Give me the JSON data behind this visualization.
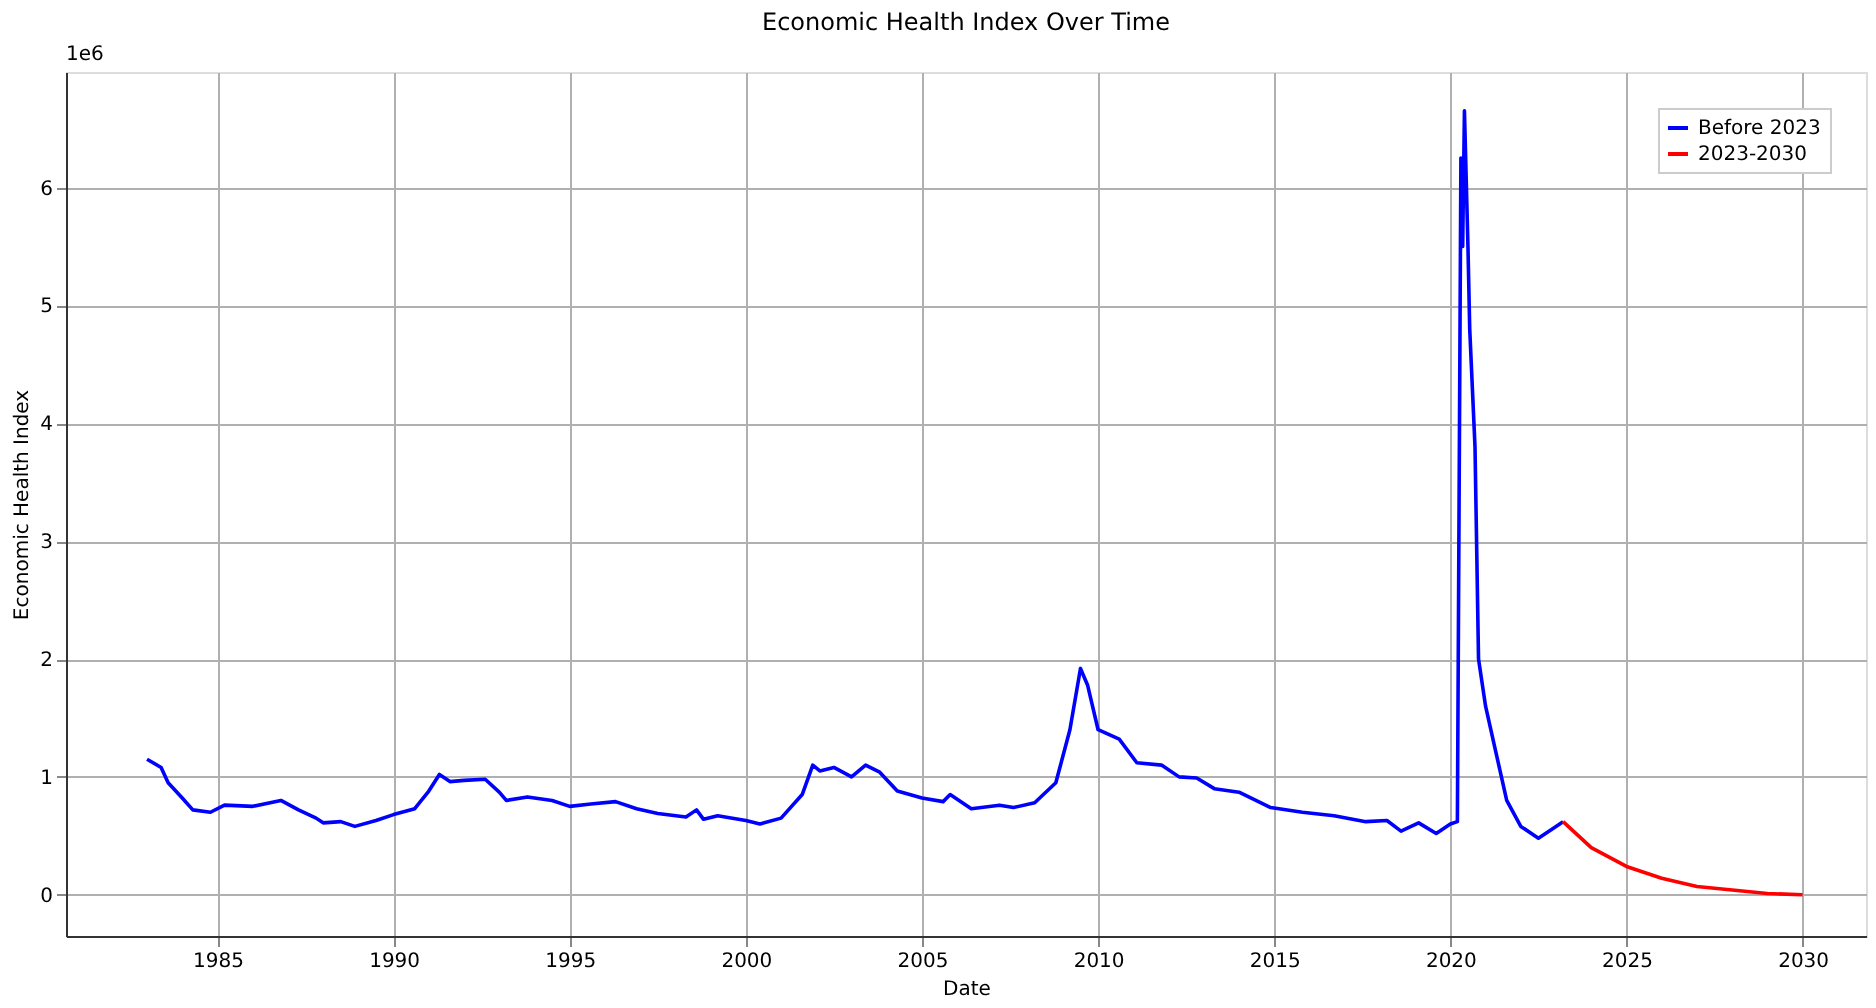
{
  "chart_data": {
    "type": "line",
    "title": "Economic Health Index Over Time",
    "xlabel": "Date",
    "ylabel": "Economic Health Index",
    "annotations": [
      "1e6"
    ],
    "xlim": [
      1980.7,
      2031.8
    ],
    "xticks": [
      1985,
      1990,
      1995,
      2000,
      2005,
      2010,
      2015,
      2020,
      2025,
      2030
    ],
    "ylim": [
      -0.35,
      6.98
    ],
    "yticks": [
      0,
      1,
      2,
      3,
      4,
      5,
      6
    ],
    "grid": true,
    "legend": "top right",
    "marker": "none",
    "line_style": "solid",
    "series": [
      {
        "name": "Before 2023",
        "color": "#0000ff",
        "x": [
          1983.0,
          1983.4,
          1983.6,
          1984.0,
          1984.3,
          1984.8,
          1985.2,
          1986.0,
          1986.8,
          1987.3,
          1987.8,
          1988.0,
          1988.5,
          1988.9,
          1989.5,
          1990.0,
          1990.6,
          1991.0,
          1991.3,
          1991.6,
          1992.0,
          1992.6,
          1993.0,
          1993.2,
          1993.8,
          1994.5,
          1995.0,
          1995.6,
          1996.3,
          1996.9,
          1997.5,
          1998.3,
          1998.6,
          1998.8,
          1999.2,
          2000.0,
          2000.4,
          2001.0,
          2001.6,
          2001.9,
          2002.1,
          2002.5,
          2003.0,
          2003.4,
          2003.8,
          2004.3,
          2005.0,
          2005.6,
          2005.8,
          2006.4,
          2007.2,
          2007.6,
          2008.2,
          2008.8,
          2009.2,
          2009.5,
          2009.7,
          2010.0,
          2010.6,
          2011.1,
          2011.8,
          2012.3,
          2012.8,
          2013.3,
          2014.0,
          2014.9,
          2015.8,
          2016.7,
          2017.6,
          2018.2,
          2018.6,
          2019.1,
          2019.6,
          2020.0,
          2020.2,
          2020.3,
          2020.35,
          2020.4,
          2020.5,
          2020.55,
          2020.7,
          2020.8,
          2021.0,
          2021.3,
          2021.6,
          2022.0,
          2022.5,
          2023.0,
          2023.2
        ],
        "values": [
          1.15,
          1.08,
          0.95,
          0.82,
          0.72,
          0.7,
          0.76,
          0.75,
          0.8,
          0.72,
          0.65,
          0.61,
          0.62,
          0.58,
          0.63,
          0.68,
          0.73,
          0.88,
          1.02,
          0.96,
          0.97,
          0.98,
          0.87,
          0.8,
          0.83,
          0.8,
          0.75,
          0.77,
          0.79,
          0.73,
          0.69,
          0.66,
          0.72,
          0.64,
          0.67,
          0.63,
          0.6,
          0.65,
          0.85,
          1.1,
          1.05,
          1.08,
          1.0,
          1.1,
          1.04,
          0.88,
          0.82,
          0.79,
          0.85,
          0.73,
          0.76,
          0.74,
          0.78,
          0.95,
          1.4,
          1.92,
          1.78,
          1.4,
          1.32,
          1.12,
          1.1,
          1.0,
          0.99,
          0.9,
          0.87,
          0.74,
          0.7,
          0.67,
          0.62,
          0.63,
          0.54,
          0.61,
          0.52,
          0.6,
          0.62,
          6.25,
          5.5,
          6.65,
          5.5,
          4.8,
          3.8,
          2.0,
          1.6,
          1.2,
          0.8,
          0.58,
          0.48,
          0.58,
          0.62
        ]
      },
      {
        "name": "2023-2030",
        "color": "#ff0000",
        "x": [
          2023.2,
          2024.0,
          2025.0,
          2026.0,
          2027.0,
          2028.0,
          2029.0,
          2030.0
        ],
        "values": [
          0.62,
          0.4,
          0.24,
          0.14,
          0.07,
          0.04,
          0.01,
          0.0
        ]
      }
    ]
  }
}
